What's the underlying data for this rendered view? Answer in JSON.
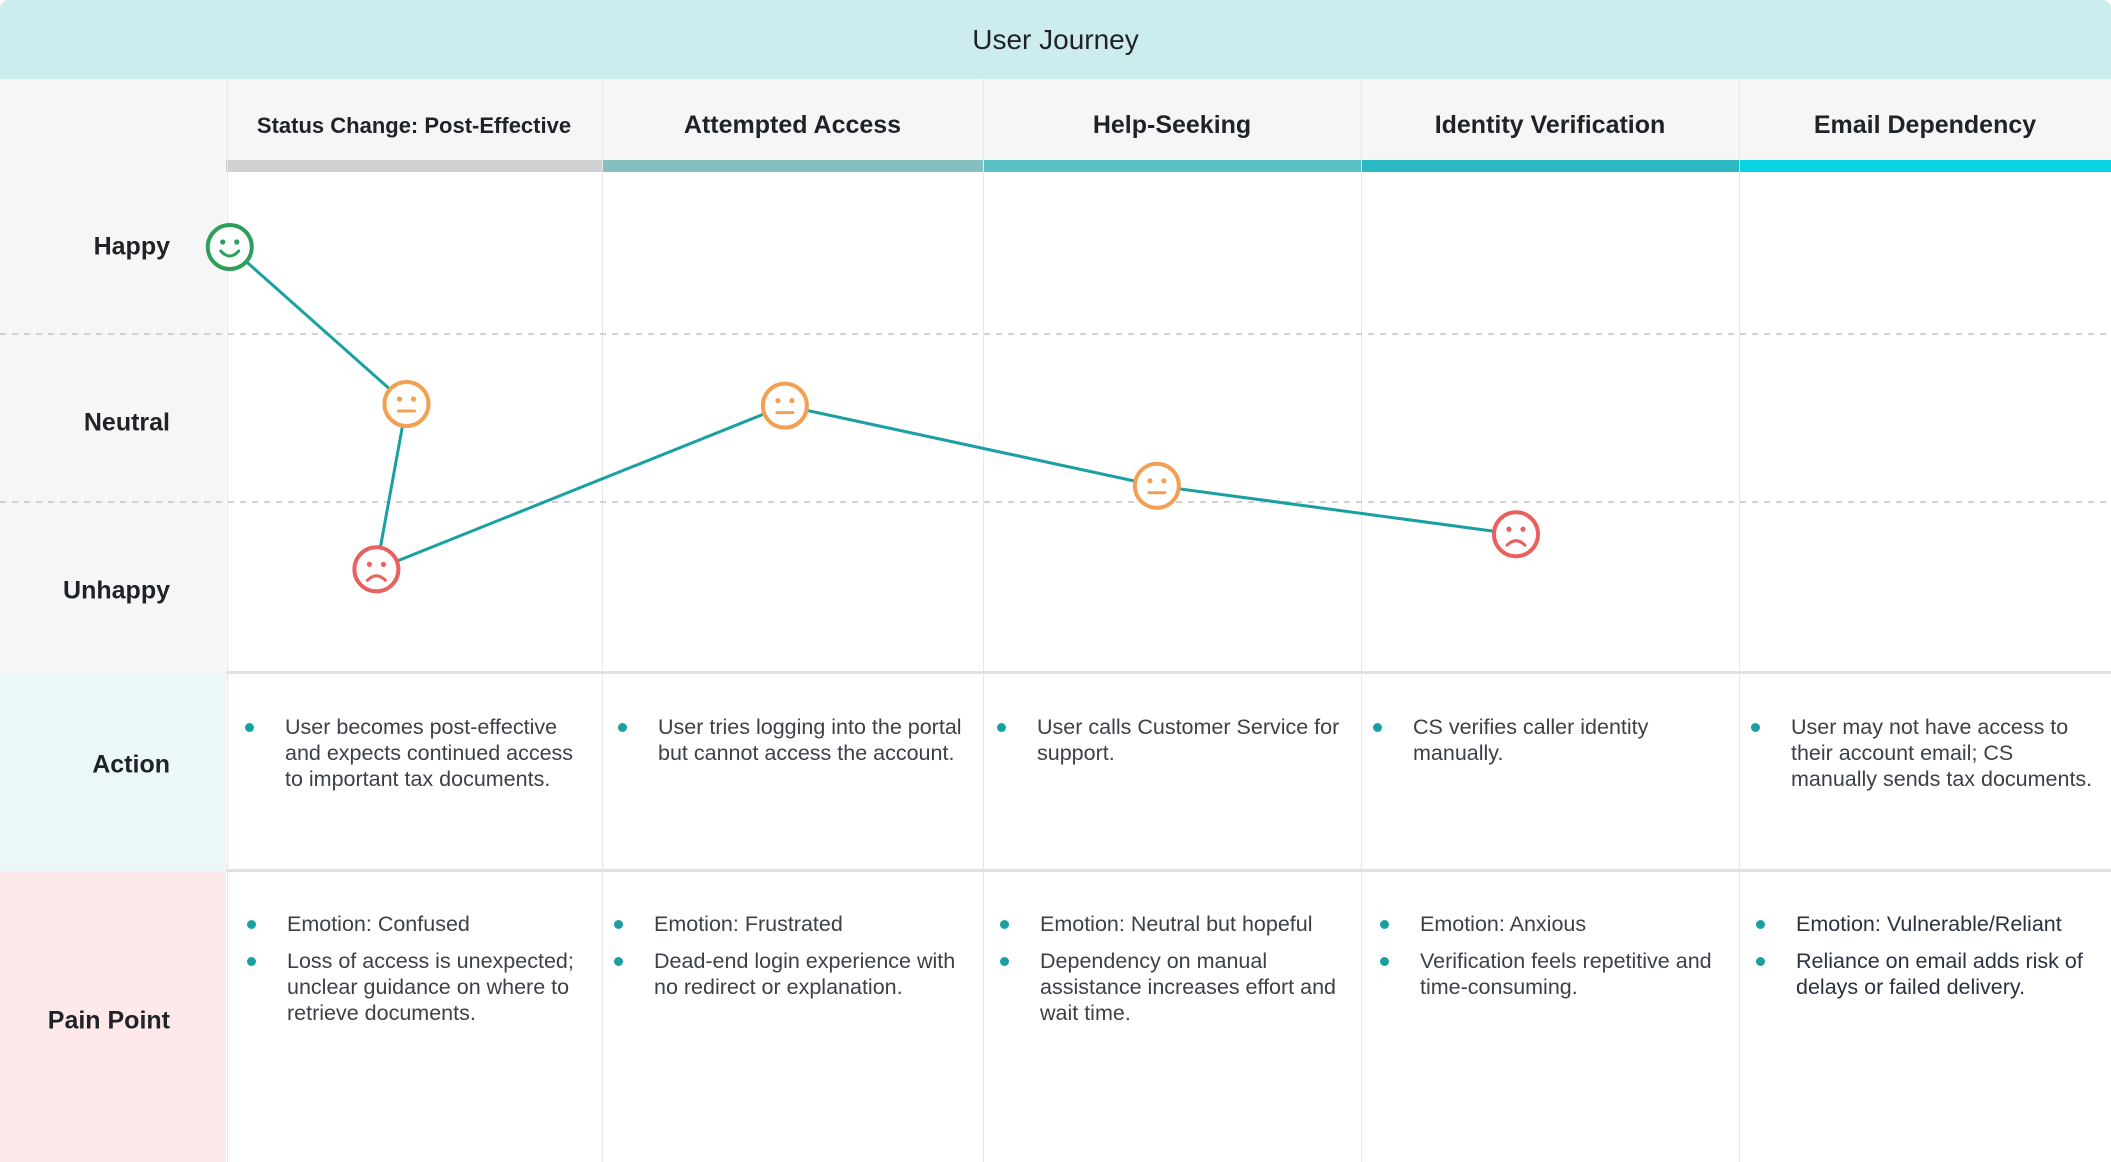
{
  "title": "User Journey",
  "emotion_levels": [
    "Happy",
    "Neutral",
    "Unhappy"
  ],
  "row_labels": {
    "action": "Action",
    "pain_point": "Pain Point"
  },
  "stages": [
    {
      "name": "Status Change: Post-Effective",
      "bar_color": "#cfd1d3",
      "action": [
        "User becomes post-effective and expects continued access to important tax documents."
      ],
      "pain_points": [
        "Emotion: Confused",
        "Loss of access is unexpected; unclear guidance on where to retrieve documents."
      ]
    },
    {
      "name": "Attempted Access",
      "bar_color": "#86bfc0",
      "action": [
        "User tries logging into the portal but cannot access the account."
      ],
      "pain_points": [
        "Emotion: Frustrated",
        "Dead-end login experience with no redirect or explanation."
      ]
    },
    {
      "name": "Help-Seeking",
      "bar_color": "#5bbfc6",
      "action": [
        "User calls Customer Service for support."
      ],
      "pain_points": [
        "Emotion: Neutral but hopeful",
        "Dependency on manual assistance increases effort and wait time."
      ]
    },
    {
      "name": "Identity Verification",
      "bar_color": "#2cb8c2",
      "action": [
        "CS verifies caller identity manually."
      ],
      "pain_points": [
        "Emotion: Anxious",
        "Verification feels repetitive and time-consuming."
      ]
    },
    {
      "name": "Email Dependency",
      "bar_color": "#07d3e4",
      "action": [
        "User may not have access to their account email; CS manually sends tax documents."
      ],
      "pain_points": [
        "Emotion: Vulnerable/Reliant",
        "Reliance on email adds risk of delays or failed delivery."
      ]
    }
  ],
  "chart_data": {
    "type": "line",
    "title": "User Journey",
    "y_scale": "emotion: 1 = Happy, 0 = Neutral, -1 = Unhappy",
    "ylim": [
      -1.4,
      1.4
    ],
    "x_stage_position": [
      0.01,
      0.48,
      0.4,
      1.48,
      2.46,
      3.41
    ],
    "points": [
      {
        "face": "happy",
        "value": 1.0
      },
      {
        "face": "neutral",
        "value": 0.06
      },
      {
        "face": "sad",
        "value": -0.93
      },
      {
        "face": "neutral",
        "value": 0.05
      },
      {
        "face": "neutral",
        "value": -0.43
      },
      {
        "face": "sad",
        "value": -0.72
      }
    ],
    "line_color": "#1a9fa3",
    "face_colors": {
      "happy": "#2e9e5b",
      "neutral": "#f2a154",
      "sad": "#e9605f"
    }
  }
}
